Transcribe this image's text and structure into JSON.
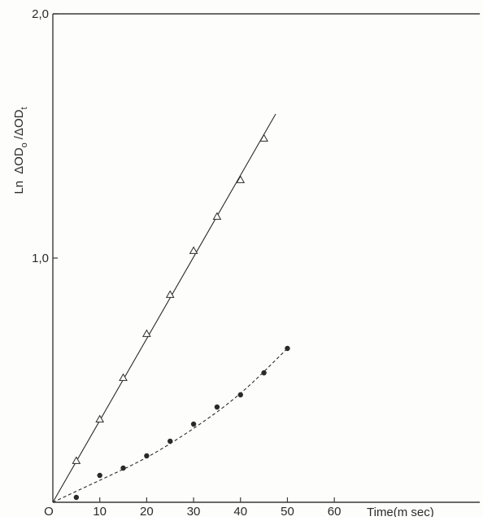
{
  "chart_data": {
    "type": "scatter",
    "ylabel_parts": {
      "ln": "Ln",
      "num": "ΔOD",
      "num_sub": "o",
      "sep": "/",
      "den": "ΔOD",
      "den_sub": "t"
    },
    "xlabel": "Time(m sec)",
    "x_ticks": [
      {
        "v": 0,
        "label": "O"
      },
      {
        "v": 10,
        "label": "10"
      },
      {
        "v": 20,
        "label": "20"
      },
      {
        "v": 30,
        "label": "30"
      },
      {
        "v": 40,
        "label": "40"
      },
      {
        "v": 50,
        "label": "50"
      },
      {
        "v": 60,
        "label": "60"
      }
    ],
    "y_ticks": [
      {
        "v": 1.0,
        "label": "1,0"
      },
      {
        "v": 2.0,
        "label": "2,0"
      }
    ],
    "xlim": [
      0,
      91
    ],
    "ylim": [
      0,
      2.0
    ],
    "grid": false,
    "series": [
      {
        "marker": "open-triangle",
        "line": "solid",
        "points": [
          {
            "x": 5,
            "y": 0.17
          },
          {
            "x": 10,
            "y": 0.34
          },
          {
            "x": 15,
            "y": 0.51
          },
          {
            "x": 20,
            "y": 0.69
          },
          {
            "x": 25,
            "y": 0.85
          },
          {
            "x": 30,
            "y": 1.03
          },
          {
            "x": 35,
            "y": 1.17
          },
          {
            "x": 40,
            "y": 1.32
          },
          {
            "x": 45,
            "y": 1.49
          }
        ],
        "fit_line": [
          {
            "x": 0,
            "y": 0.0
          },
          {
            "x": 47.5,
            "y": 1.59
          }
        ]
      },
      {
        "marker": "filled-circle",
        "line": "dashed",
        "points": [
          {
            "x": 5,
            "y": 0.02
          },
          {
            "x": 10,
            "y": 0.11
          },
          {
            "x": 15,
            "y": 0.14
          },
          {
            "x": 20,
            "y": 0.19
          },
          {
            "x": 25,
            "y": 0.25
          },
          {
            "x": 30,
            "y": 0.32
          },
          {
            "x": 35,
            "y": 0.39
          },
          {
            "x": 40,
            "y": 0.44
          },
          {
            "x": 45,
            "y": 0.53
          },
          {
            "x": 50,
            "y": 0.63
          }
        ],
        "fit_curve": [
          {
            "x": 0,
            "y": 0.0
          },
          {
            "x": 10,
            "y": 0.09
          },
          {
            "x": 20,
            "y": 0.18
          },
          {
            "x": 30,
            "y": 0.3
          },
          {
            "x": 40,
            "y": 0.44
          },
          {
            "x": 50,
            "y": 0.63
          }
        ]
      }
    ],
    "colors": {
      "ink": "#2a2a2a",
      "frame": "#3a3a3a",
      "background": "#fdfdfb"
    }
  }
}
